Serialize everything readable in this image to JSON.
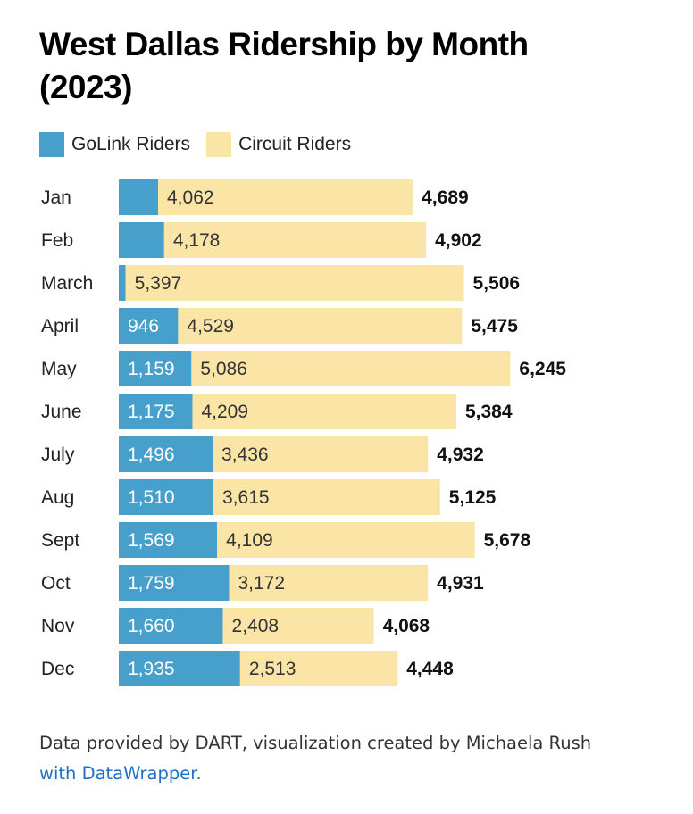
{
  "title": "West Dallas Ridership by Month (2023)",
  "legend": [
    {
      "label": "GoLink Riders",
      "color": "#479fcb"
    },
    {
      "label": "Circuit Riders",
      "color": "#fae5a7"
    }
  ],
  "footer": {
    "text": "Data provided by DART, visualization created by Michaela Rush",
    "link": "with DataWrapper."
  },
  "chart_data": {
    "type": "bar",
    "orientation": "horizontal",
    "stacked": true,
    "title": "West Dallas Ridership by Month (2023)",
    "categories": [
      "Jan",
      "Feb",
      "March",
      "April",
      "May",
      "June",
      "July",
      "Aug",
      "Sept",
      "Oct",
      "Nov",
      "Dec"
    ],
    "series": [
      {
        "name": "GoLink Riders",
        "color": "#479fcb",
        "values": [
          627,
          724,
          109,
          946,
          1159,
          1175,
          1496,
          1510,
          1569,
          1759,
          1660,
          1935
        ],
        "labels": [
          "",
          "",
          "",
          "946",
          "1,159",
          "1,175",
          "1,496",
          "1,510",
          "1,569",
          "1,759",
          "1,660",
          "1,935"
        ]
      },
      {
        "name": "Circuit Riders",
        "color": "#fae5a7",
        "values": [
          4062,
          4178,
          5397,
          4529,
          5086,
          4209,
          3436,
          3615,
          4109,
          3172,
          2408,
          2513
        ],
        "labels": [
          "4,062",
          "4,178",
          "5,397",
          "4,529",
          "5,086",
          "4,209",
          "3,436",
          "3,615",
          "4,109",
          "3,172",
          "2,408",
          "2,513"
        ]
      }
    ],
    "totals": [
      "4,689",
      "4,902",
      "5,506",
      "5,475",
      "6,245",
      "5,384",
      "4,932",
      "5,125",
      "5,678",
      "4,931",
      "4,068",
      "4,448"
    ],
    "legend_position": "top-left",
    "grid": false
  }
}
